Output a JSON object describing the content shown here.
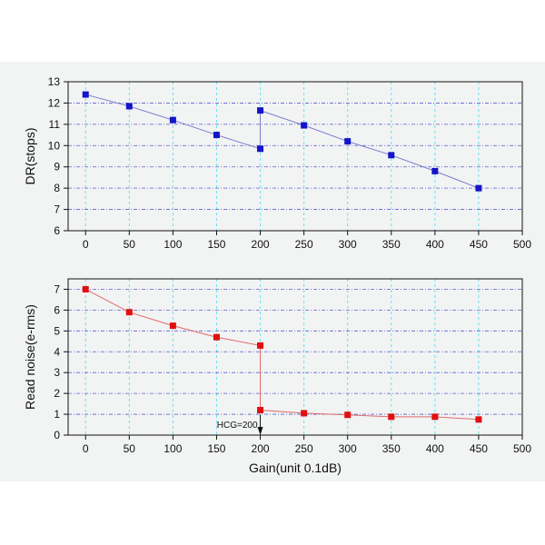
{
  "colors": {
    "background": "#f2f3f3",
    "vgrid": "#67e3ee",
    "hgrid": "#5a5fd0",
    "top_series": "#1414c8",
    "top_line": "#7c7ccc",
    "bottom_series": "#e01010",
    "bottom_line": "#e06a6a"
  },
  "chart_data": [
    {
      "type": "line",
      "ylabel": "DR(stops)",
      "xlabel": "",
      "xlim": [
        -20,
        500
      ],
      "ylim": [
        6,
        13
      ],
      "xticks": [
        0,
        50,
        100,
        150,
        200,
        250,
        300,
        350,
        400,
        450,
        500
      ],
      "yticks": [
        6,
        7,
        8,
        9,
        10,
        11,
        12,
        13
      ],
      "grid": true,
      "marker": "square",
      "series": [
        {
          "x": [
            0,
            50,
            100,
            150,
            200,
            200,
            250,
            300,
            350,
            400,
            450
          ],
          "y": [
            12.4,
            11.85,
            11.2,
            10.5,
            9.85,
            11.65,
            10.95,
            10.2,
            9.55,
            8.8,
            8.0
          ]
        }
      ]
    },
    {
      "type": "line",
      "ylabel": "Read noise(e-rms)",
      "xlabel": "Gain(unit 0.1dB)",
      "xlim": [
        -20,
        500
      ],
      "ylim": [
        0,
        7.5
      ],
      "xticks": [
        0,
        50,
        100,
        150,
        200,
        250,
        300,
        350,
        400,
        450,
        500
      ],
      "yticks": [
        0,
        1,
        2,
        3,
        4,
        5,
        6,
        7
      ],
      "grid": true,
      "marker": "square",
      "series": [
        {
          "x": [
            0,
            50,
            100,
            150,
            200,
            200,
            250,
            300,
            350,
            400,
            450
          ],
          "y": [
            7.0,
            5.9,
            5.25,
            4.7,
            4.3,
            1.2,
            1.05,
            0.97,
            0.88,
            0.88,
            0.75
          ]
        }
      ],
      "annotations": [
        {
          "text": "HCG=200",
          "x": 200,
          "y": 0.3,
          "arrow": "down"
        }
      ]
    }
  ]
}
